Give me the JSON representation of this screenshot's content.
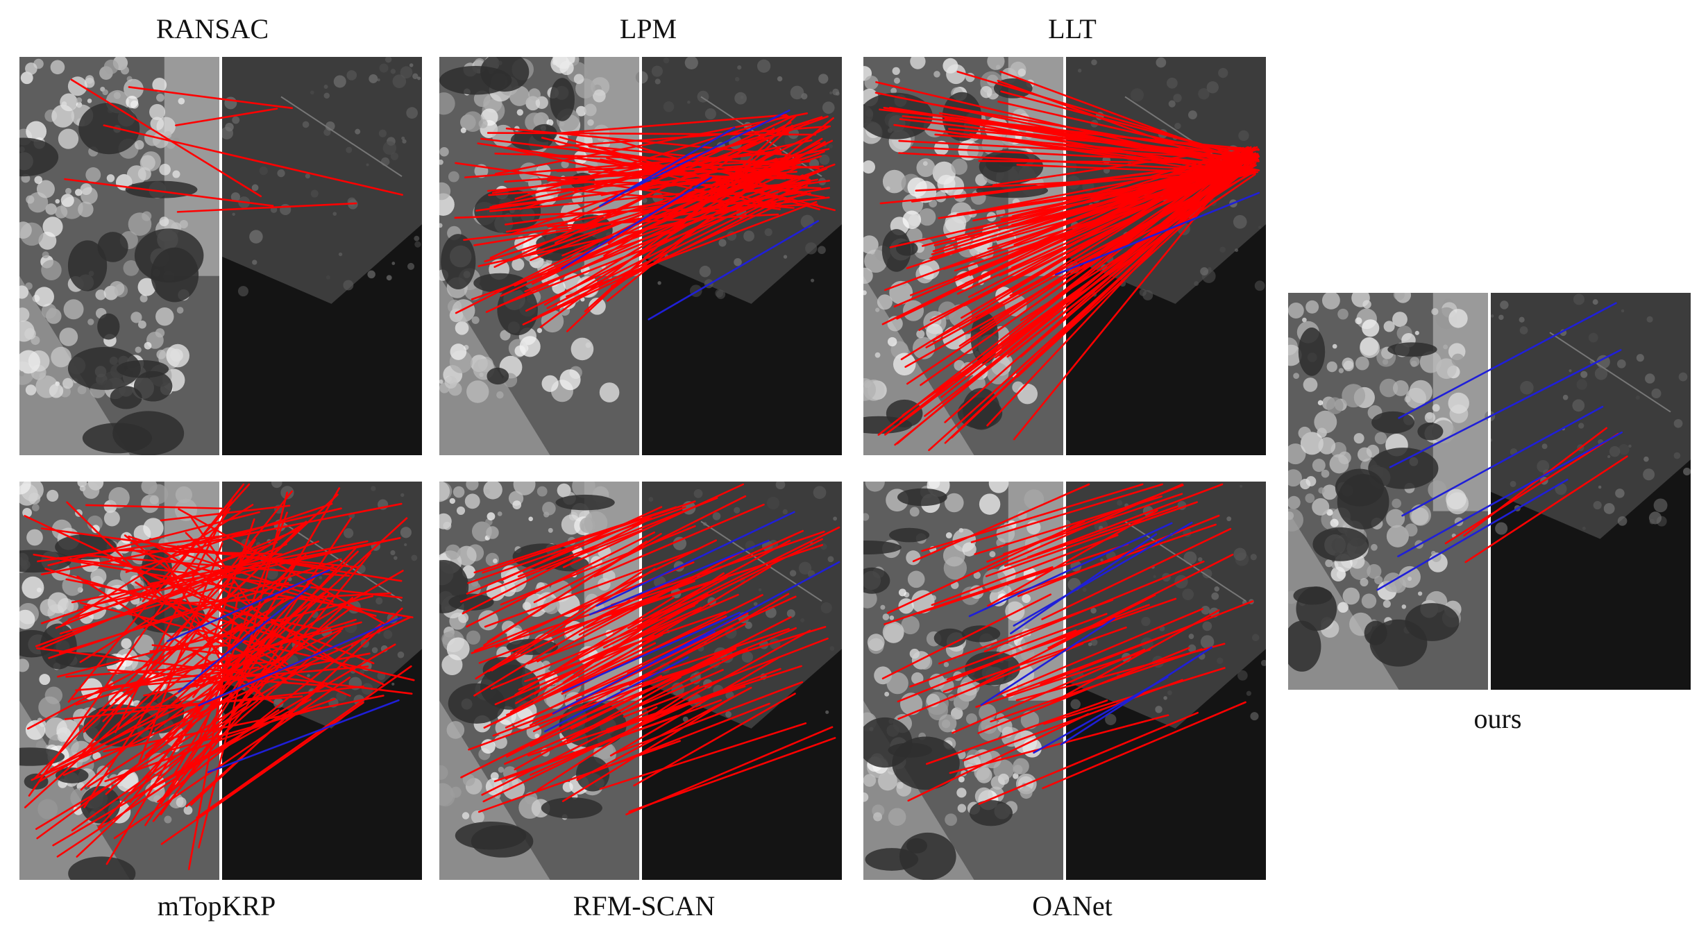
{
  "figure": {
    "panels": [
      {
        "id": "ransac",
        "label": "RANSAC",
        "label_pos": "top",
        "red_lines": 6,
        "blue_lines": 0,
        "pattern": "sparse"
      },
      {
        "id": "lpm",
        "label": "LPM",
        "label_pos": "top",
        "red_lines": 80,
        "blue_lines": 4,
        "pattern": "fan-right"
      },
      {
        "id": "llt",
        "label": "LLT",
        "label_pos": "top",
        "red_lines": 110,
        "blue_lines": 1,
        "pattern": "converge"
      },
      {
        "id": "mtopkrp",
        "label": "mTopKRP",
        "label_pos": "bottom",
        "red_lines": 120,
        "blue_lines": 4,
        "pattern": "dense"
      },
      {
        "id": "rfm-scan",
        "label": "RFM-SCAN",
        "label_pos": "bottom",
        "red_lines": 90,
        "blue_lines": 6,
        "pattern": "parallel"
      },
      {
        "id": "oanet",
        "label": "OANet",
        "label_pos": "bottom",
        "red_lines": 45,
        "blue_lines": 6,
        "pattern": "parallel-sparse"
      },
      {
        "id": "ours",
        "label": "ours",
        "label_pos": "bottom",
        "red_lines": 3,
        "blue_lines": 5,
        "pattern": "correct"
      }
    ],
    "colors": {
      "outlier": "#ff0000",
      "inlier": "#1f1fd8",
      "left_image_base": "#5e5e5e",
      "right_image_base": "#141414"
    }
  }
}
